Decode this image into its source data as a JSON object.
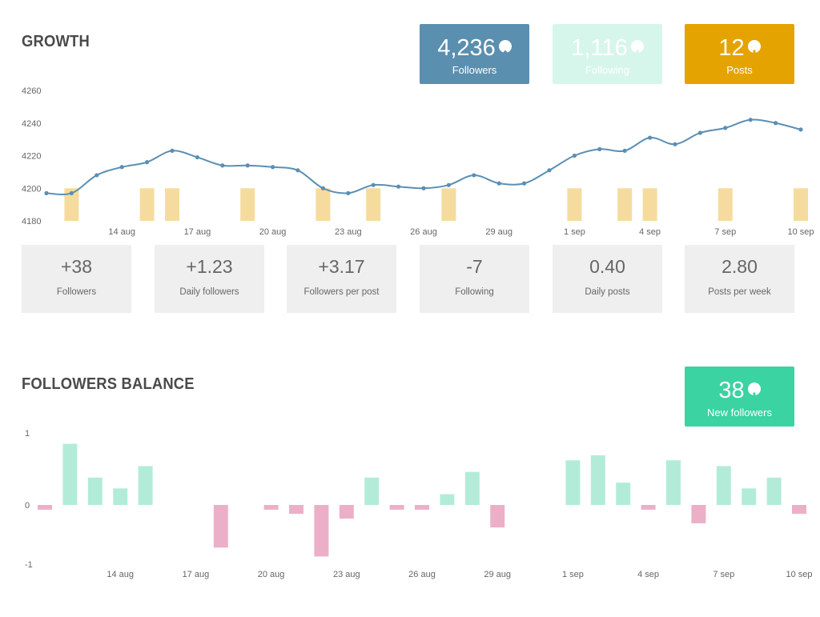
{
  "growth": {
    "title": "GROWTH",
    "boxes": [
      {
        "value": "4,236",
        "label": "Followers",
        "arrow": "up",
        "bg": "#5a8fb0",
        "fg": "#ffffff"
      },
      {
        "value": "1,116",
        "label": "Following",
        "arrow": "down",
        "bg": "#d6f6ec",
        "fg": "#ffffff"
      },
      {
        "value": "12",
        "label": "Posts",
        "arrow": "down",
        "bg": "#e5a300",
        "fg": "#ffffff"
      }
    ],
    "metrics": [
      {
        "value": "+38",
        "label": "Followers"
      },
      {
        "value": "+1.23",
        "label": "Daily followers"
      },
      {
        "value": "+3.17",
        "label": "Followers per post"
      },
      {
        "value": "-7",
        "label": "Following"
      },
      {
        "value": "0.40",
        "label": "Daily posts"
      },
      {
        "value": "2.80",
        "label": "Posts per week"
      }
    ]
  },
  "balance": {
    "title": "FOLLOWERS BALANCE",
    "box": {
      "value": "38",
      "label": "New followers",
      "arrow": "down",
      "bg": "#3ad3a1",
      "fg": "#ffffff"
    }
  },
  "colors": {
    "line": "#5b8fb3",
    "post_bar": "#f5dc9e",
    "positive": "#b2ecd9",
    "negative": "#ebb0c8"
  },
  "chart_data": [
    {
      "type": "line",
      "x": [
        "11 aug",
        "12 aug",
        "13 aug",
        "14 aug",
        "15 aug",
        "16 aug",
        "17 aug",
        "18 aug",
        "19 aug",
        "20 aug",
        "21 aug",
        "22 aug",
        "23 aug",
        "24 aug",
        "25 aug",
        "26 aug",
        "27 aug",
        "28 aug",
        "29 aug",
        "30 aug",
        "31 aug",
        "1 sep",
        "2 sep",
        "3 sep",
        "4 sep",
        "5 sep",
        "6 sep",
        "7 sep",
        "8 sep",
        "9 sep",
        "10 sep"
      ],
      "xticks": [
        "14 aug",
        "17 aug",
        "20 aug",
        "23 aug",
        "26 aug",
        "29 aug",
        "1 sep",
        "4 sep",
        "7 sep",
        "10 sep"
      ],
      "yticks": [
        "4260",
        "4240",
        "4220",
        "4200",
        "4180"
      ],
      "ylim": [
        4180,
        4260
      ],
      "series": [
        {
          "values": [
            4197,
            4197,
            4208,
            4213,
            4216,
            4223,
            4219,
            4214,
            4214,
            4213,
            4211,
            4200,
            4197,
            4202,
            4201,
            4200,
            4202,
            4208,
            4203,
            4203,
            4211,
            4220,
            4224,
            4223,
            4231,
            4227,
            4234,
            4237,
            4242,
            4240,
            4236
          ]
        }
      ],
      "posts_days": [
        "12 aug",
        "15 aug",
        "16 aug",
        "19 aug",
        "22 aug",
        "24 aug",
        "27 aug",
        "1 sep",
        "3 sep",
        "4 sep",
        "7 sep",
        "10 sep"
      ]
    },
    {
      "type": "bar",
      "x": [
        "11 aug",
        "12 aug",
        "13 aug",
        "14 aug",
        "15 aug",
        "16 aug",
        "17 aug",
        "18 aug",
        "19 aug",
        "20 aug",
        "21 aug",
        "22 aug",
        "23 aug",
        "24 aug",
        "25 aug",
        "26 aug",
        "27 aug",
        "28 aug",
        "29 aug",
        "30 aug",
        "31 aug",
        "1 sep",
        "2 sep",
        "3 sep",
        "4 sep",
        "5 sep",
        "6 sep",
        "7 sep",
        "8 sep",
        "9 sep",
        "10 sep"
      ],
      "xticks": [
        "14 aug",
        "17 aug",
        "20 aug",
        "23 aug",
        "26 aug",
        "29 aug",
        "1 sep",
        "4 sep",
        "7 sep",
        "10 sep"
      ],
      "yticks": [
        "1",
        "0",
        "-1"
      ],
      "ylim": [
        -1,
        1
      ],
      "values": [
        -0.08,
        0.85,
        0.38,
        0.23,
        0.54,
        0,
        0,
        -0.72,
        0,
        -0.08,
        -0.15,
        -0.87,
        -0.23,
        0.38,
        -0.08,
        -0.08,
        0.15,
        0.46,
        -0.38,
        0,
        0,
        0.62,
        0.69,
        0.31,
        -0.08,
        0.62,
        -0.31,
        0.54,
        0.23,
        0.38,
        -0.15
      ]
    }
  ]
}
